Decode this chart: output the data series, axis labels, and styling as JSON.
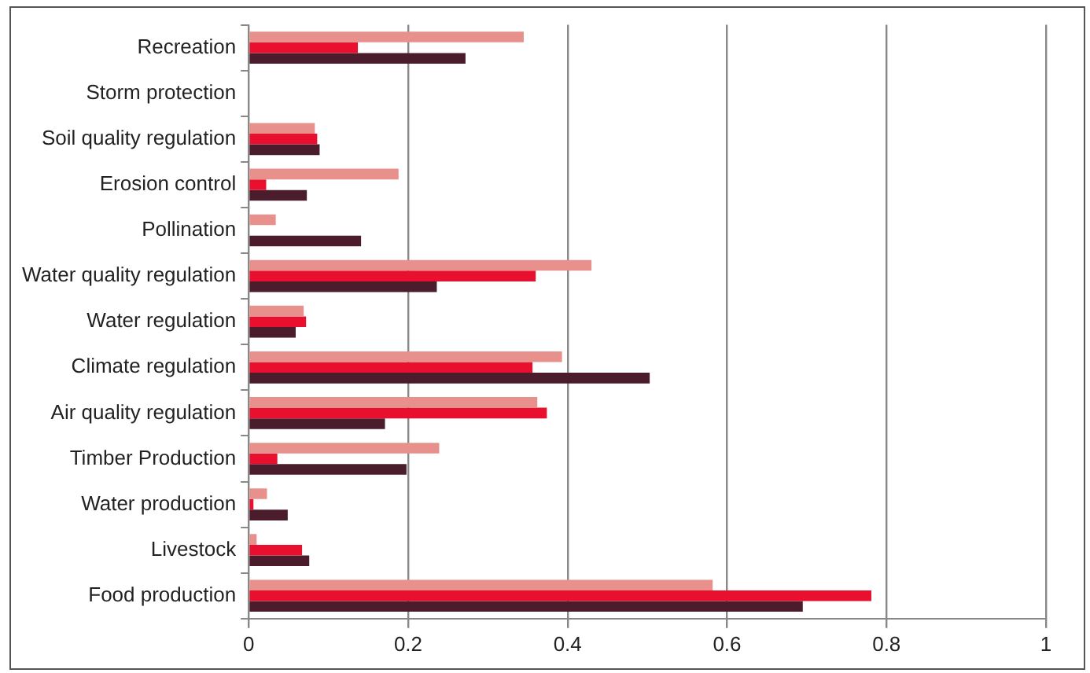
{
  "chart_data": {
    "type": "bar",
    "orientation": "horizontal",
    "categories": [
      "Recreation",
      "Storm protection",
      "Soil quality regulation",
      "Erosion control",
      "Pollination",
      "Water quality regulation",
      "Water regulation",
      "Climate regulation",
      "Air quality regulation",
      "Timber Production",
      "Water production",
      "Livestock",
      "Food production"
    ],
    "series": [
      {
        "color": "#e8908c",
        "values": [
          0.345,
          0,
          0.083,
          0.188,
          0.034,
          0.43,
          0.069,
          0.393,
          0.362,
          0.239,
          0.023,
          0.01,
          0.582
        ]
      },
      {
        "color": "#e8102e",
        "values": [
          0.137,
          0,
          0.086,
          0.022,
          0,
          0.36,
          0.072,
          0.356,
          0.374,
          0.036,
          0.006,
          0.067,
          0.781
        ]
      },
      {
        "color": "#4a1c2c",
        "values": [
          0.272,
          0,
          0.089,
          0.073,
          0.141,
          0.236,
          0.059,
          0.503,
          0.171,
          0.198,
          0.049,
          0.076,
          0.695
        ]
      }
    ],
    "xlim": [
      0,
      1
    ],
    "xticks": [
      0,
      0.2,
      0.4,
      0.6,
      0.8,
      1
    ],
    "grid": "x",
    "legend": false
  }
}
